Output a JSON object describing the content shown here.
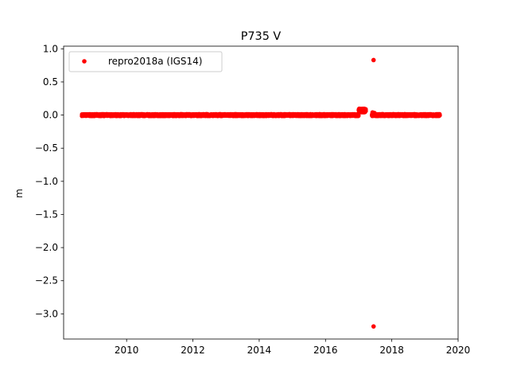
{
  "chart_data": {
    "type": "scatter",
    "title": "P735 V",
    "xlabel": "",
    "ylabel": "m",
    "xlim": [
      2008.1,
      2020.0
    ],
    "ylim": [
      -3.38,
      1.04
    ],
    "x_ticks": [
      2010,
      2012,
      2014,
      2016,
      2018,
      2020
    ],
    "x_tick_labels": [
      "2010",
      "2012",
      "2014",
      "2016",
      "2018",
      "2020"
    ],
    "y_ticks": [
      1.0,
      0.5,
      0.0,
      -0.5,
      -1.0,
      -1.5,
      -2.0,
      -2.5,
      -3.0
    ],
    "y_tick_labels": [
      "1.0",
      "0.5",
      "0.0",
      "−0.5",
      "−1.0",
      "−1.5",
      "−2.0",
      "−2.5",
      "−3.0"
    ],
    "grid": false,
    "legend": {
      "placement": "top-left",
      "entries": [
        "repro2018a (IGS14)"
      ]
    },
    "marker_color": "#ff0000",
    "series": [
      {
        "name": "repro2018a (IGS14)",
        "segments": [
          {
            "x_start": 2008.65,
            "x_end": 2017.0,
            "y_mean": 0.0,
            "spread": 0.015,
            "step": 0.0027
          },
          {
            "x_start": 2017.0,
            "x_end": 2017.22,
            "y_mean": 0.07,
            "spread": 0.03,
            "step": 0.0027
          },
          {
            "x_start": 2017.4,
            "x_end": 2019.45,
            "y_mean": 0.0,
            "spread": 0.015,
            "step": 0.0027
          }
        ],
        "points": [
          {
            "x": 2017.45,
            "y": 0.83
          },
          {
            "x": 2017.45,
            "y": -3.19
          },
          {
            "x": 2017.42,
            "y": 0.04
          },
          {
            "x": 2017.48,
            "y": 0.03
          },
          {
            "x": 2017.05,
            "y": 0.09
          },
          {
            "x": 2017.15,
            "y": 0.08
          }
        ]
      }
    ]
  }
}
